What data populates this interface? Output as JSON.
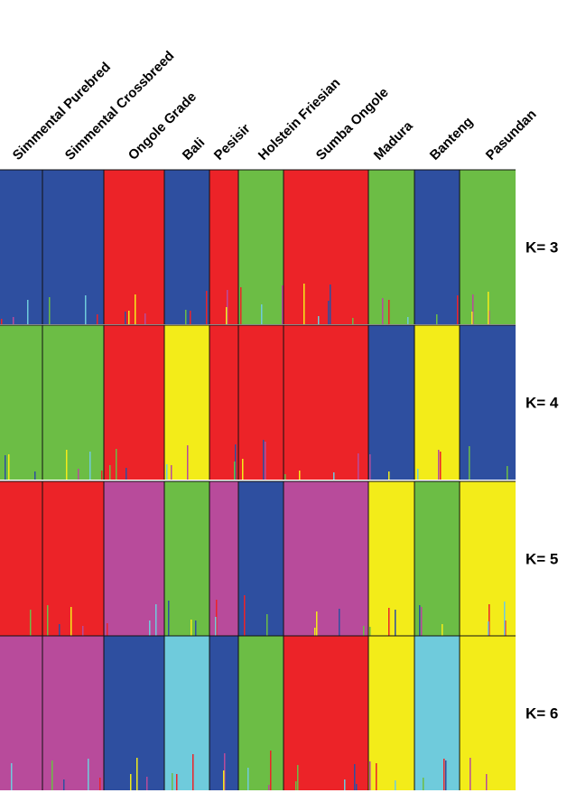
{
  "chart_data": {
    "type": "structure",
    "populations": [
      {
        "name": "Simmental Purebred"
      },
      {
        "name": "Simmental Crossbreed"
      },
      {
        "name": "Ongole Grade"
      },
      {
        "name": "Bali"
      },
      {
        "name": "Pesisir"
      },
      {
        "name": "Holstein Friesian"
      },
      {
        "name": "Sumba Ongole"
      },
      {
        "name": "Madura"
      },
      {
        "name": "Banteng"
      },
      {
        "name": "Pasundan"
      }
    ],
    "panels": [
      {
        "label": "K= 3",
        "k": 3,
        "majority_cluster_color": [
          "#2e4fa0",
          "#2e4fa0",
          "#ec2328",
          "#2e4fa0",
          "#ec2328",
          "#6cbd45",
          "#ec2328",
          "#6cbd45",
          "#2e4fa0",
          "#6cbd45"
        ]
      },
      {
        "label": "K= 4",
        "k": 4,
        "majority_cluster_color": [
          "#6cbd45",
          "#6cbd45",
          "#ec2328",
          "#f3ec19",
          "#ec2328",
          "#ec2328",
          "#ec2328",
          "#2e4fa0",
          "#f3ec19",
          "#2e4fa0"
        ]
      },
      {
        "label": "K= 5",
        "k": 5,
        "majority_cluster_color": [
          "#ec2328",
          "#ec2328",
          "#b84b9b",
          "#6cbd45",
          "#b84b9b",
          "#2e4fa0",
          "#b84b9b",
          "#f3ec19",
          "#6cbd45",
          "#f3ec19"
        ]
      },
      {
        "label": "K= 6",
        "k": 6,
        "majority_cluster_color": [
          "#b84b9b",
          "#b84b9b",
          "#2e4fa0",
          "#6fcbdc",
          "#2e4fa0",
          "#6cbd45",
          "#ec2328",
          "#f3ec19",
          "#6fcbdc",
          "#f3ec19"
        ]
      }
    ]
  }
}
